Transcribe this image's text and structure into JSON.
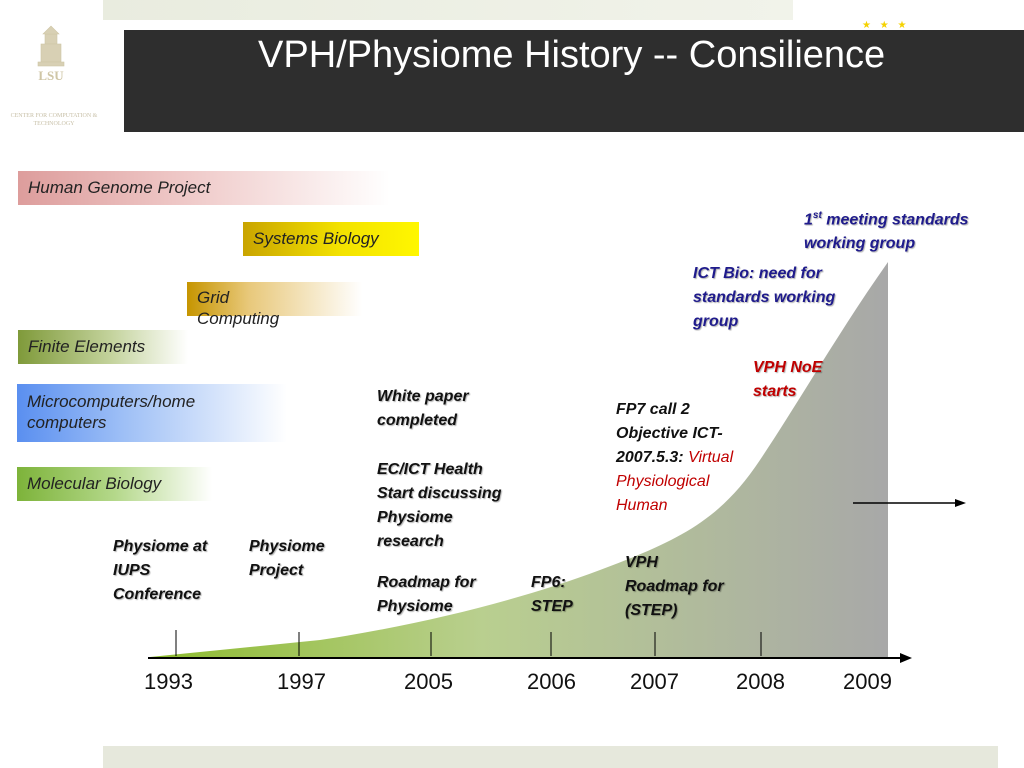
{
  "slide": {
    "title": "VPH/Physiome History -- Consilience"
  },
  "logo": {
    "letters": "LSU",
    "caption": "CENTER FOR COMPUTATION & TECHNOLOGY"
  },
  "bands": {
    "human_genome": "Human Genome Project",
    "systems_biology": "Systems Biology",
    "grid_computing": [
      "Grid",
      "Computing"
    ],
    "finite_elements": "Finite Elements",
    "microcomputers": [
      "Microcomputers/home",
      "computers"
    ],
    "molecular_biology": "Molecular Biology"
  },
  "annotations": {
    "standards_meeting": {
      "sup": "st",
      "num": "1",
      "rest": " meeting standards",
      "line2": "working group"
    },
    "ict_bio": [
      "ICT Bio: need for",
      "standards working",
      "group"
    ],
    "vph_noe": [
      "VPH NoE",
      "starts"
    ],
    "fp7": {
      "line1": "FP7 call 2",
      "line2": "Objective ICT-",
      "line3a": "2007.5.3: ",
      "line3b": "Virtual",
      "line4": "Physiological",
      "line5": "Human"
    },
    "white_paper": [
      "White paper",
      "completed"
    ],
    "ec_ict": [
      "EC/ICT Health",
      "Start discussing",
      "Physiome",
      "research"
    ],
    "roadmap_physiome": [
      "Roadmap for",
      "Physiome"
    ],
    "fp6": [
      "FP6:",
      "STEP"
    ],
    "vph_roadmap": [
      "VPH",
      "Roadmap for",
      "(STEP)"
    ],
    "physiome_iups": [
      "Physiome at",
      "IUPS",
      "Conference"
    ],
    "physiome_project": [
      "Physiome",
      "Project"
    ]
  },
  "timeline": {
    "years": [
      "1993",
      "1997",
      "2005",
      "2006",
      "2007",
      "2008",
      "2009"
    ]
  },
  "colors": {
    "title_bar": "#2e2e2e",
    "annotation_blue": "#1f1b8c",
    "annotation_red": "#c00000"
  }
}
